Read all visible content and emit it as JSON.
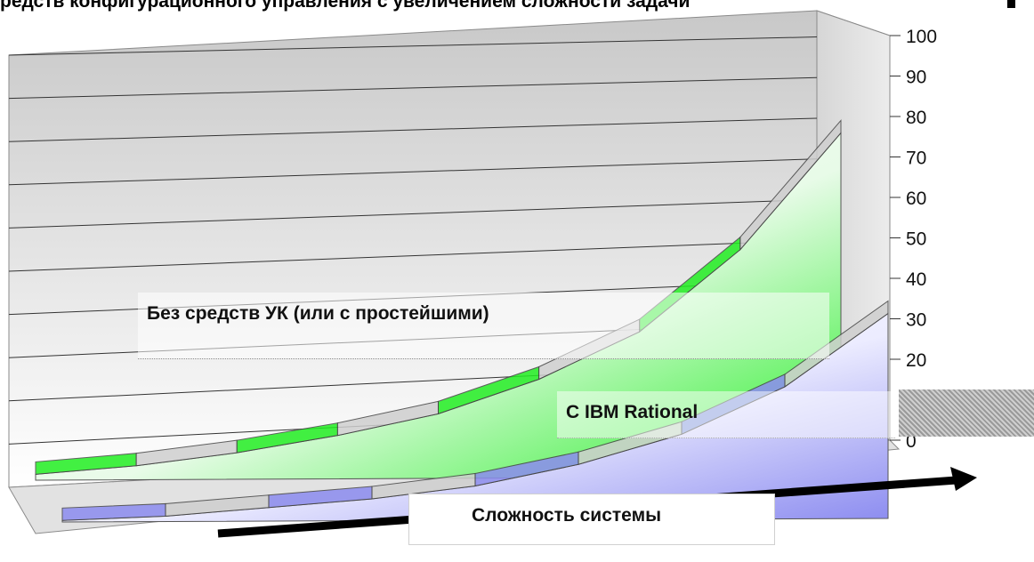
{
  "page": {
    "title": "редств конфигурационного управления с увеличением сложности задачи"
  },
  "chart_data": {
    "type": "area",
    "title": "редств конфигурационного управления с увеличением сложности задачи",
    "xlabel": "Сложность системы",
    "ylabel": "",
    "ylim": [
      0,
      100
    ],
    "yticks": [
      0,
      20,
      30,
      40,
      50,
      60,
      70,
      80,
      90,
      100
    ],
    "x": [
      1,
      2,
      3,
      4,
      5,
      6,
      7,
      8,
      9
    ],
    "series": [
      {
        "name": "Без средств УК (или с простейшими)",
        "values": [
          3,
          5,
          8,
          12,
          17,
          25,
          36,
          55,
          82
        ],
        "color": "#22ee22"
      },
      {
        "name": "С IBM Rational",
        "values": [
          2,
          3,
          5,
          7,
          10,
          15,
          22,
          33,
          50
        ],
        "color": "#8c8cf0"
      }
    ],
    "grid": true,
    "legend": "inline"
  }
}
